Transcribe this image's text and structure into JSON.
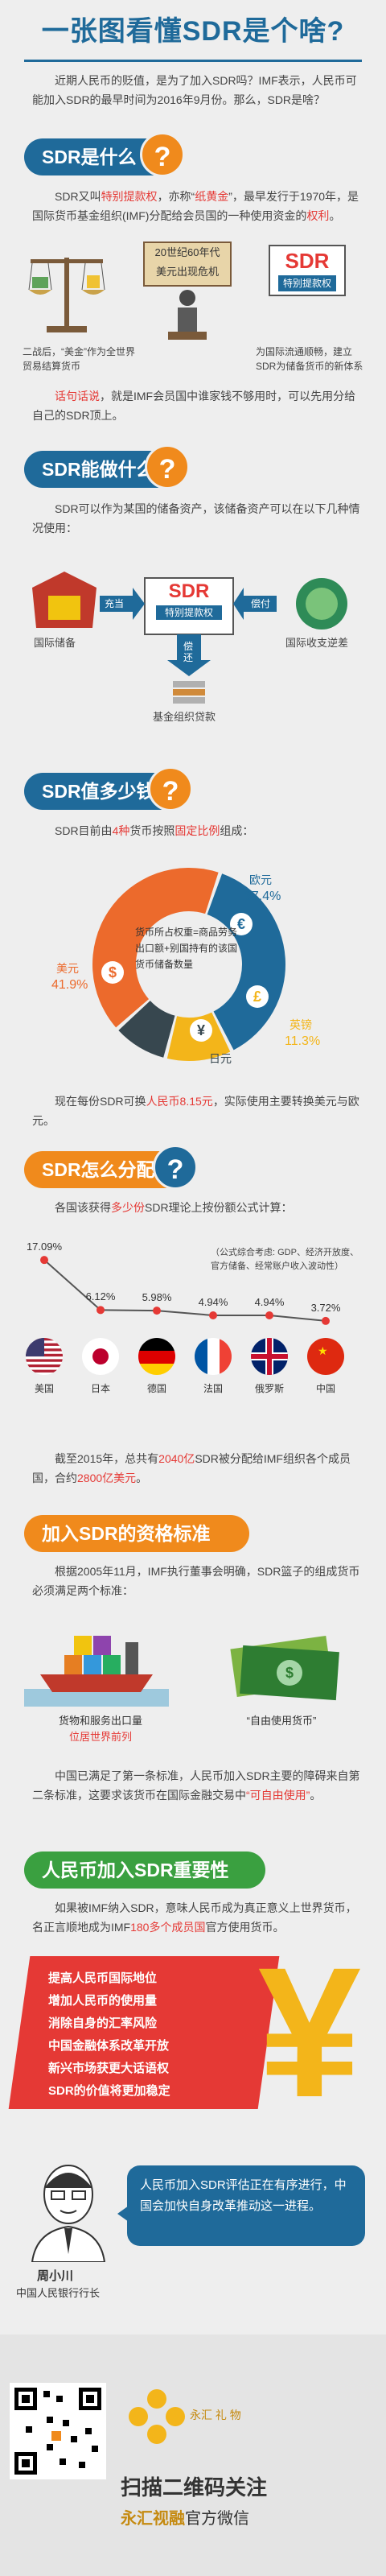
{
  "header": {
    "title": "一张图看懂SDR是个啥?"
  },
  "intro": {
    "text": "近期人民币的贬值，是为了加入SDR吗？IMF表示，人民币可能加入SDR的最早时间为2016年9月份。那么，SDR是啥？"
  },
  "sec1": {
    "title": "SDR是什么",
    "q": "?",
    "text_a": "SDR又叫",
    "text_b": "特别提款权",
    "text_c": "，亦称“",
    "text_d": "纸黄金",
    "text_e": "”，最早发行于1970年，是国际货币基金组织(IMF)分配给会员国的一种使用资金的",
    "text_f": "权利",
    "text_g": "。",
    "banner1": "20世纪60年代",
    "banner2": "美元出现危机",
    "sdr_box": "SDR",
    "sdr_box_sub": "特别提款权",
    "left_caption": "二战后，“美金”作为全世界贸易结算货币",
    "right_caption": "为国际流通顺畅，建立SDR为储备货币的新体系",
    "note_a": "话句话说",
    "note_b": "，就是IMF会员国中谁家钱不够用时，可以先用分给自己的SDR顶上。"
  },
  "sec2": {
    "title": "SDR能做什么",
    "q": "?",
    "text": "SDR可以作为某国的储备资产，该储备资产可以在以下几种情况使用：",
    "center": "SDR",
    "center_sub": "特别提款权",
    "left_arrow": "充当",
    "right_arrow": "偿付",
    "down_arrow": "偿还",
    "left_label": "国际储备",
    "right_label": "国际收支逆差",
    "bottom_label": "基金组织贷款"
  },
  "sec3": {
    "title": "SDR值多少钱",
    "q": "?",
    "text_a": "SDR目前由",
    "text_b": "4种",
    "text_c": "货币按照",
    "text_d": "固定比例",
    "text_e": "组成：",
    "center_text": "货币所占权重=商品劳务出口额+别国持有的该国货币储备数量",
    "bottom_a": "现在每份SDR可换",
    "bottom_b": "人民币8.15元",
    "bottom_c": "，实际使用主要转换美元与欧元。"
  },
  "chart_data": {
    "type": "pie",
    "categories": [
      "欧元",
      "英镑",
      "日元",
      "美元"
    ],
    "values": [
      37.4,
      11.3,
      9.4,
      41.9
    ],
    "labels": [
      "37.4%",
      "11.3%",
      "",
      "41.9%"
    ],
    "colors": [
      "#1f6a9a",
      "#f3b51a",
      "#37474f",
      "#ec6a2c"
    ],
    "icons": [
      "€",
      "£",
      "¥",
      "$"
    ]
  },
  "sec4": {
    "title": "SDR怎么分配",
    "q": "?",
    "text_a": "各国该获得",
    "text_b": "多少份",
    "text_c": "SDR理论上按份额公式计算：",
    "formula_note": "（公式综合考虑: GDP、经济开放度、官方储备、经常账户收入波动性）",
    "countries": [
      {
        "name": "美国",
        "pct": "17.09%",
        "value": 17.09
      },
      {
        "name": "日本",
        "pct": "6.12%",
        "value": 6.12
      },
      {
        "name": "德国",
        "pct": "5.98%",
        "value": 5.98
      },
      {
        "name": "法国",
        "pct": "4.94%",
        "value": 4.94
      },
      {
        "name": "俄罗斯",
        "pct": "4.94%",
        "value": 4.94
      },
      {
        "name": "中国",
        "pct": "3.72%",
        "value": 3.72
      }
    ],
    "bottom_a": "截至2015年，总共有",
    "bottom_b": "2040亿",
    "bottom_c": "SDR被分配给IMF组织各个成员国，合约",
    "bottom_d": "2800亿美元",
    "bottom_e": "。"
  },
  "sec5": {
    "title": "加入SDR的资格标准",
    "text": "根据2005年11月，IMF执行董事会明确，SDR篮子的组成货币必须满足两个标准：",
    "left_a": "货物和服务出口量",
    "left_b": "位居世界前列",
    "right": "“自由使用货币”",
    "bottom_a": "中国已满足了第一条标准，人民币加入SDR主要的障碍来自第二条标准，这要求该货币在国际金融交易中",
    "bottom_b": "“可自由使用”",
    "bottom_c": "。"
  },
  "sec6": {
    "title": "人民币加入SDR重要性",
    "text_a": "如果被IMF纳入SDR，意味人民币成为真正意义上世界货币，名正言顺地成为IMF",
    "text_b": "180多个成员国",
    "text_c": "官方使用货币。",
    "bullets": [
      "提高人民币国际地位",
      "增加人民币的使用量",
      "消除自身的汇率风险",
      "中国金融体系改革开放",
      "新兴市场获更大话语权",
      "SDR的价值将更加稳定"
    ],
    "yuan": "¥",
    "quote": "人民币加入SDR评估正在有序进行，中国会加快自身改革推动这一进程。",
    "person_name": "周小川",
    "person_title": "中国人民银行行长"
  },
  "footer": {
    "logo_text": "永汇 礼 物",
    "cta": "扫描二维码关注",
    "brand": "永汇视融",
    "brand_suffix": "官方微信"
  }
}
